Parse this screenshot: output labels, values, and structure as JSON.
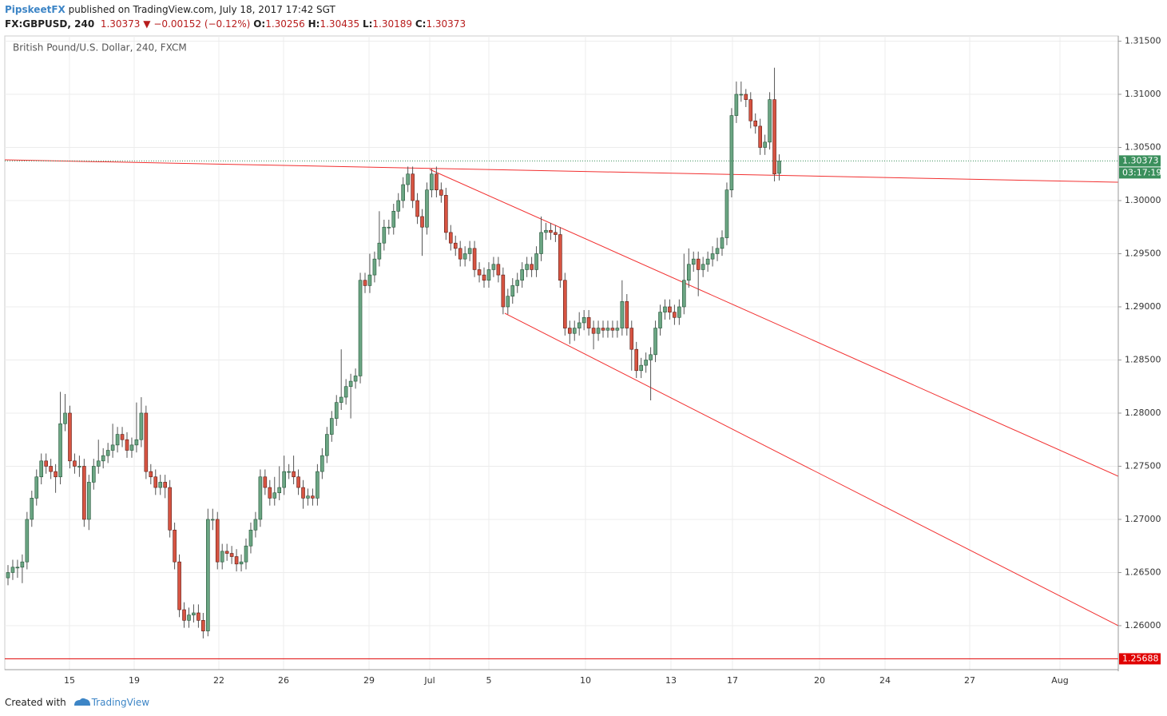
{
  "header": {
    "user": "PipskeetFX",
    "published": "published on TradingView.com, July 18, 2017 17:42 SGT",
    "symbol": "FX:GBPUSD, 240",
    "price": "1.30373",
    "arrow": "▼",
    "change": "−0.00152 (−0.12%)",
    "open_label": "O:",
    "open": "1.30256",
    "high_label": "H:",
    "high": "1.30435",
    "low_label": "L:",
    "low": "1.30189",
    "close_label": "C:",
    "close": "1.30373"
  },
  "footer": {
    "created": "Created with",
    "brand": "TradingView"
  },
  "chart_data": {
    "type": "candlestick",
    "title": "British Pound/U.S. Dollar, 240, FXCM",
    "up_color": "#6ba583",
    "down_color": "#d75442",
    "ylim": [
      1.25586,
      1.31549
    ],
    "yticks": [
      {
        "value": 1.315,
        "label": "1.31500"
      },
      {
        "value": 1.31,
        "label": "1.31000"
      },
      {
        "value": 1.305,
        "label": "1.30500"
      },
      {
        "value": 1.3,
        "label": "1.30000"
      },
      {
        "value": 1.295,
        "label": "1.29500"
      },
      {
        "value": 1.29,
        "label": "1.29000"
      },
      {
        "value": 1.285,
        "label": "1.28500"
      },
      {
        "value": 1.28,
        "label": "1.28000"
      },
      {
        "value": 1.275,
        "label": "1.27500"
      },
      {
        "value": 1.27,
        "label": "1.27000"
      },
      {
        "value": 1.265,
        "label": "1.26500"
      },
      {
        "value": 1.26,
        "label": "1.26000"
      }
    ],
    "xtick_labels": [
      "15",
      "19",
      "22",
      "26",
      "29",
      "Jul",
      "5",
      "10",
      "13",
      "17",
      "20",
      "24",
      "27",
      "Aug"
    ],
    "grid": true,
    "last_price": 1.30373,
    "countdown": "03:17:19",
    "level": 1.25688,
    "open": [
      1.2645,
      1.265,
      1.2655,
      1.2655,
      1.266,
      1.27,
      1.272,
      1.274,
      1.2755,
      1.275,
      1.2745,
      1.274,
      1.279,
      1.28,
      1.2755,
      1.275,
      1.275,
      1.27,
      1.2735,
      1.275,
      1.2755,
      1.276,
      1.2765,
      1.277,
      1.278,
      1.2775,
      1.2765,
      1.277,
      1.2775,
      1.28,
      1.2745,
      1.274,
      1.273,
      1.2735,
      1.273,
      1.269,
      1.266,
      1.2615,
      1.2605,
      1.261,
      1.2612,
      1.2605,
      1.2595,
      1.27,
      1.27,
      1.266,
      1.267,
      1.2668,
      1.2665,
      1.2658,
      1.266,
      1.2675,
      1.269,
      1.27,
      1.274,
      1.273,
      1.272,
      1.2725,
      1.273,
      1.2745,
      1.2745,
      1.274,
      1.273,
      1.272,
      1.2722,
      1.272,
      1.2745,
      1.276,
      1.278,
      1.2795,
      1.281,
      1.2815,
      1.2825,
      1.283,
      1.2835,
      1.2925,
      1.292,
      1.293,
      1.2945,
      1.296,
      1.2975,
      1.2975,
      1.299,
      1.3,
      1.3015,
      1.3025,
      1.3,
      1.2985,
      1.2975,
      1.301,
      1.3025,
      1.301,
      1.3005,
      1.297,
      1.296,
      1.2955,
      1.2945,
      1.295,
      1.2955,
      1.2935,
      1.293,
      1.2925,
      1.2935,
      1.294,
      1.293,
      1.29,
      1.291,
      1.292,
      1.2925,
      1.2935,
      1.294,
      1.2935,
      1.295,
      1.297,
      1.2972,
      1.297,
      1.2968,
      1.2925,
      1.288,
      1.2875,
      1.288,
      1.2885,
      1.289,
      1.288,
      1.2875,
      1.288,
      1.2878,
      1.288,
      1.2878,
      1.288,
      1.2905,
      1.288,
      1.286,
      1.284,
      1.2845,
      1.285,
      1.2855,
      1.288,
      1.2895,
      1.29,
      1.2895,
      1.289,
      1.29,
      1.2925,
      1.294,
      1.2945,
      1.2935,
      1.294,
      1.2945,
      1.295,
      1.2955,
      1.2965,
      1.301,
      1.308,
      1.31,
      1.31,
      1.3095,
      1.3075,
      1.307,
      1.305,
      1.3055,
      1.3095,
      1.30256
    ],
    "high": [
      1.2657,
      1.2662,
      1.2662,
      1.2667,
      1.2707,
      1.2727,
      1.2747,
      1.2762,
      1.2762,
      1.2757,
      1.2752,
      1.282,
      1.2818,
      1.2807,
      1.2762,
      1.276,
      1.2757,
      1.2742,
      1.2757,
      1.2775,
      1.2767,
      1.2772,
      1.279,
      1.2787,
      1.2787,
      1.2782,
      1.2777,
      1.281,
      1.2815,
      1.2807,
      1.2752,
      1.2747,
      1.2742,
      1.2742,
      1.2737,
      1.2697,
      1.2667,
      1.2622,
      1.2617,
      1.262,
      1.262,
      1.2612,
      1.271,
      1.271,
      1.2707,
      1.2677,
      1.2677,
      1.2675,
      1.2672,
      1.2667,
      1.2682,
      1.2697,
      1.2707,
      1.2747,
      1.2747,
      1.2737,
      1.274,
      1.275,
      1.276,
      1.2752,
      1.276,
      1.2747,
      1.2737,
      1.2729,
      1.2729,
      1.2752,
      1.2767,
      1.2787,
      1.2802,
      1.2817,
      1.286,
      1.2832,
      1.2837,
      1.2842,
      1.2932,
      1.2932,
      1.295,
      1.2952,
      1.299,
      1.2982,
      1.2982,
      1.2997,
      1.3007,
      1.3022,
      1.3032,
      1.3032,
      1.3007,
      1.2992,
      1.3017,
      1.303,
      1.3032,
      1.3017,
      1.3012,
      1.2977,
      1.2967,
      1.2962,
      1.2957,
      1.2962,
      1.2962,
      1.2942,
      1.2937,
      1.2942,
      1.2947,
      1.2947,
      1.2937,
      1.2917,
      1.2927,
      1.2932,
      1.2942,
      1.2947,
      1.2947,
      1.2957,
      1.2985,
      1.2979,
      1.2979,
      1.2977,
      1.2975,
      1.2932,
      1.2887,
      1.2887,
      1.2895,
      1.2897,
      1.2897,
      1.2887,
      1.2887,
      1.2887,
      1.2887,
      1.2887,
      1.2887,
      1.2925,
      1.2912,
      1.2887,
      1.2867,
      1.2852,
      1.2857,
      1.2862,
      1.2887,
      1.2902,
      1.2907,
      1.2907,
      1.2902,
      1.2907,
      1.295,
      1.2955,
      1.2952,
      1.2952,
      1.2947,
      1.2952,
      1.2957,
      1.2965,
      1.2972,
      1.3017,
      1.3087,
      1.3112,
      1.3112,
      1.3105,
      1.3102,
      1.3082,
      1.3077,
      1.3062,
      1.3102,
      1.3125,
      1.30435
    ],
    "low": [
      1.2638,
      1.2643,
      1.2645,
      1.264,
      1.2653,
      1.2693,
      1.2713,
      1.2733,
      1.2743,
      1.2738,
      1.2725,
      1.2733,
      1.2783,
      1.2748,
      1.2743,
      1.274,
      1.2693,
      1.269,
      1.2728,
      1.2743,
      1.2748,
      1.2753,
      1.2758,
      1.2763,
      1.2768,
      1.2758,
      1.2758,
      1.2763,
      1.2768,
      1.2738,
      1.2733,
      1.2723,
      1.2723,
      1.272,
      1.2683,
      1.2653,
      1.2608,
      1.2598,
      1.2598,
      1.2603,
      1.2598,
      1.2588,
      1.259,
      1.269,
      1.2653,
      1.2653,
      1.2661,
      1.2658,
      1.2651,
      1.2651,
      1.2653,
      1.2668,
      1.2683,
      1.2693,
      1.2723,
      1.2713,
      1.2713,
      1.2718,
      1.2723,
      1.2738,
      1.2733,
      1.2723,
      1.271,
      1.2713,
      1.2713,
      1.2713,
      1.2738,
      1.2753,
      1.2773,
      1.2788,
      1.2803,
      1.2808,
      1.2795,
      1.2823,
      1.2828,
      1.2913,
      1.2913,
      1.2923,
      1.2938,
      1.2953,
      1.2968,
      1.2968,
      1.2983,
      1.2993,
      1.3008,
      1.2993,
      1.2978,
      1.2948,
      1.2968,
      1.3003,
      1.3003,
      1.2998,
      1.2963,
      1.2953,
      1.2948,
      1.2938,
      1.2938,
      1.2943,
      1.2928,
      1.2923,
      1.2918,
      1.2918,
      1.2928,
      1.2923,
      1.2893,
      1.2893,
      1.2903,
      1.2913,
      1.2918,
      1.2928,
      1.2928,
      1.2928,
      1.2943,
      1.2963,
      1.2963,
      1.2961,
      1.2918,
      1.2873,
      1.2865,
      1.2868,
      1.2873,
      1.2878,
      1.2873,
      1.286,
      1.2868,
      1.2871,
      1.2871,
      1.2871,
      1.2871,
      1.2873,
      1.2873,
      1.284,
      1.2833,
      1.2833,
      1.2838,
      1.2812,
      1.2848,
      1.2873,
      1.2888,
      1.2888,
      1.2883,
      1.2883,
      1.2893,
      1.2918,
      1.2933,
      1.291,
      1.2928,
      1.2933,
      1.2938,
      1.2943,
      1.2948,
      1.2958,
      1.3003,
      1.3073,
      1.3093,
      1.3088,
      1.3068,
      1.3063,
      1.3043,
      1.3043,
      1.3048,
      1.3018,
      1.30189
    ],
    "close": [
      1.265,
      1.2655,
      1.2655,
      1.266,
      1.27,
      1.272,
      1.274,
      1.2755,
      1.275,
      1.2745,
      1.274,
      1.279,
      1.28,
      1.2755,
      1.275,
      1.275,
      1.27,
      1.2735,
      1.275,
      1.2755,
      1.276,
      1.2765,
      1.277,
      1.278,
      1.2775,
      1.2765,
      1.277,
      1.2775,
      1.28,
      1.2745,
      1.274,
      1.273,
      1.2735,
      1.273,
      1.269,
      1.266,
      1.2615,
      1.2605,
      1.261,
      1.2612,
      1.2605,
      1.2595,
      1.27,
      1.27,
      1.266,
      1.267,
      1.2668,
      1.2665,
      1.2658,
      1.266,
      1.2675,
      1.269,
      1.27,
      1.274,
      1.273,
      1.272,
      1.2725,
      1.273,
      1.2745,
      1.2745,
      1.274,
      1.273,
      1.272,
      1.2722,
      1.272,
      1.2745,
      1.276,
      1.278,
      1.2795,
      1.281,
      1.2815,
      1.2825,
      1.283,
      1.2835,
      1.2925,
      1.292,
      1.293,
      1.2945,
      1.296,
      1.2975,
      1.2975,
      1.299,
      1.3,
      1.3015,
      1.3025,
      1.3,
      1.2985,
      1.2975,
      1.301,
      1.3025,
      1.301,
      1.3005,
      1.297,
      1.296,
      1.2955,
      1.2945,
      1.295,
      1.2955,
      1.2935,
      1.293,
      1.2925,
      1.2935,
      1.294,
      1.293,
      1.29,
      1.291,
      1.292,
      1.2925,
      1.2935,
      1.294,
      1.2935,
      1.295,
      1.297,
      1.2972,
      1.297,
      1.2968,
      1.2925,
      1.288,
      1.2875,
      1.288,
      1.2885,
      1.289,
      1.288,
      1.2875,
      1.288,
      1.2878,
      1.288,
      1.2878,
      1.288,
      1.2905,
      1.288,
      1.286,
      1.284,
      1.2845,
      1.285,
      1.2855,
      1.288,
      1.2895,
      1.29,
      1.2895,
      1.289,
      1.29,
      1.2925,
      1.294,
      1.2945,
      1.2935,
      1.294,
      1.2945,
      1.295,
      1.2955,
      1.2965,
      1.301,
      1.308,
      1.31,
      1.31,
      1.3095,
      1.3075,
      1.307,
      1.305,
      1.3055,
      1.3095,
      1.3025,
      1.30373
    ]
  }
}
